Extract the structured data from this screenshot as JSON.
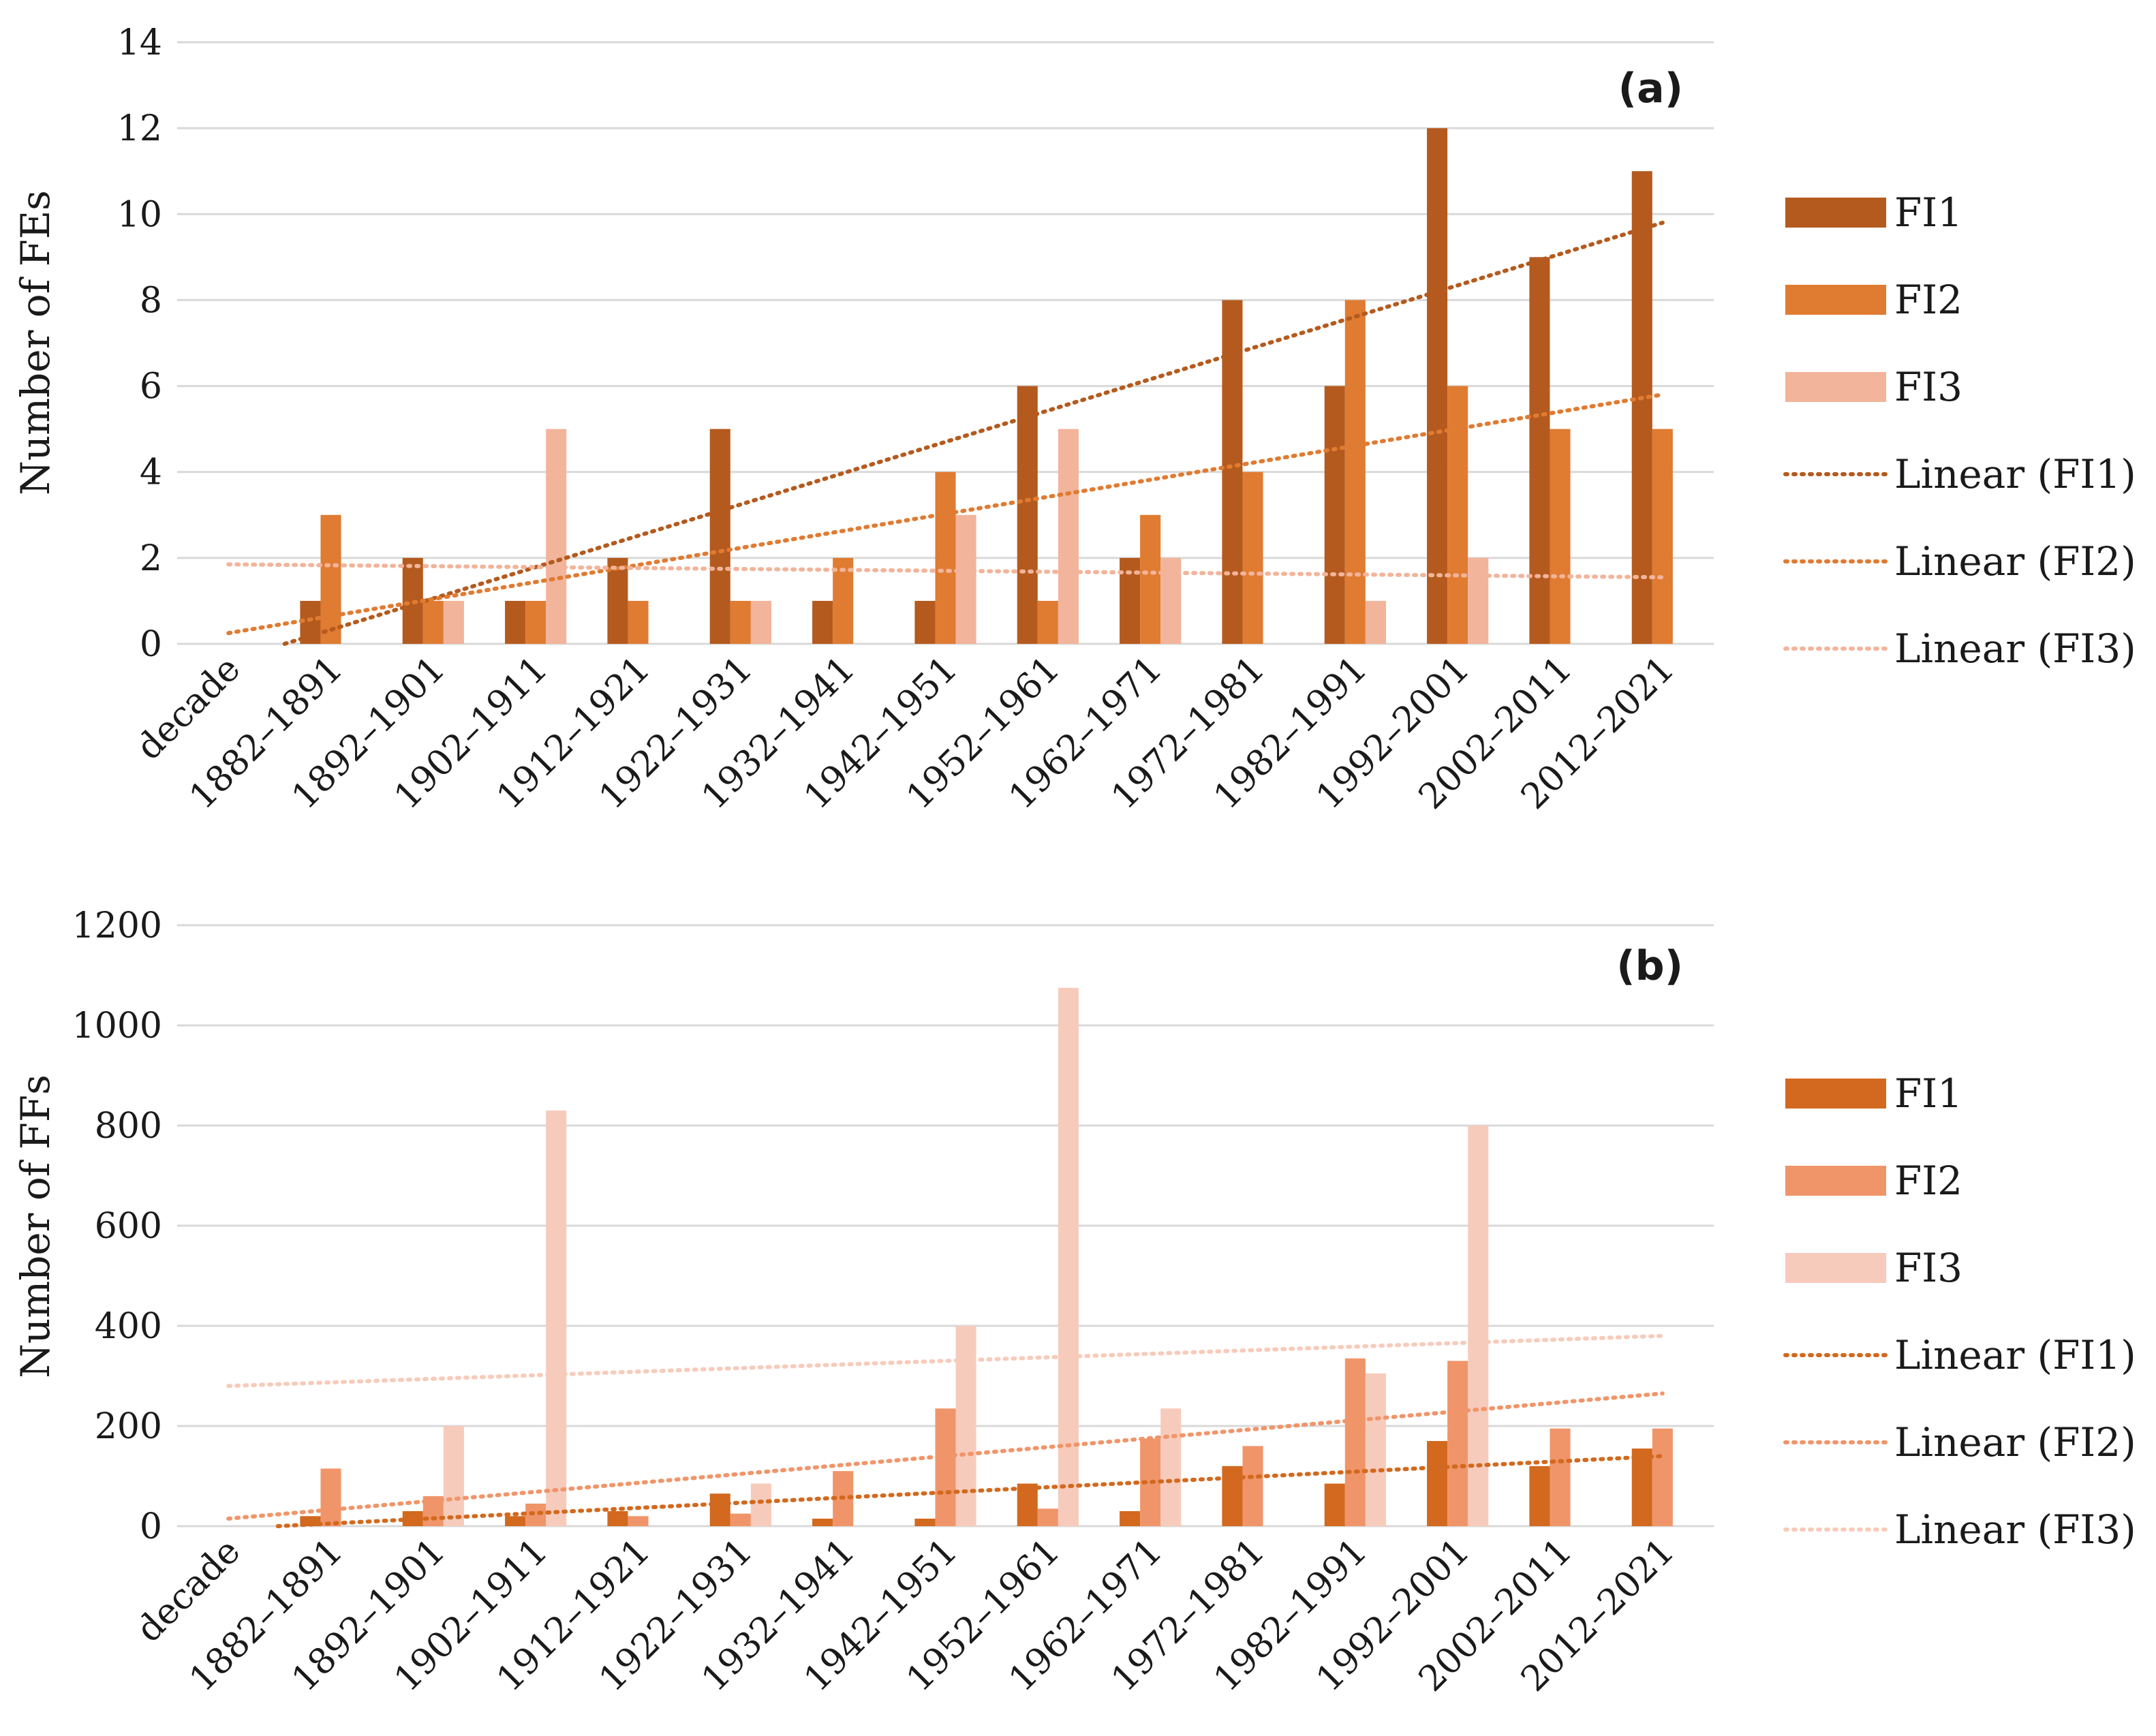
{
  "chart_data": [
    {
      "type": "bar",
      "panel_label": "(a)",
      "ylabel": "Number of FEs",
      "xlabel": "",
      "ylim": [
        0,
        14
      ],
      "yticks": [
        "0",
        "2",
        "4",
        "6",
        "8",
        "10",
        "12",
        "14"
      ],
      "grid": true,
      "categories": [
        "decade",
        "1882–1891",
        "1892–1901",
        "1902–1911",
        "1912–1921",
        "1922–1931",
        "1932–1941",
        "1942–1951",
        "1952–1961",
        "1962–1971",
        "1972–1981",
        "1982–1991",
        "1992–2001",
        "2002–2011",
        "2012–2021"
      ],
      "series": [
        {
          "name": "FI1",
          "color": "#B45A1E",
          "values": [
            null,
            1,
            2,
            1,
            2,
            5,
            1,
            1,
            6,
            2,
            8,
            6,
            12,
            9,
            11
          ]
        },
        {
          "name": "FI2",
          "color": "#E07B32",
          "values": [
            null,
            3,
            1,
            1,
            1,
            1,
            2,
            4,
            1,
            3,
            4,
            8,
            6,
            5,
            5
          ]
        },
        {
          "name": "FI3",
          "color": "#F2B49A",
          "values": [
            null,
            0,
            1,
            5,
            0,
            1,
            0,
            3,
            5,
            2,
            0,
            1,
            2,
            0,
            0
          ]
        }
      ],
      "trendlines": [
        {
          "name": "Linear (FI1)",
          "color": "#B45A1E",
          "start": -0.4,
          "end": 9.8
        },
        {
          "name": "Linear (FI2)",
          "color": "#E07B32",
          "start": 0.25,
          "end": 5.8
        },
        {
          "name": "Linear (FI3)",
          "color": "#F2B49A",
          "start": 1.85,
          "end": 1.55
        }
      ],
      "legend": [
        "FI1",
        "FI2",
        "FI3",
        "Linear (FI1)",
        "Linear (FI2)",
        "Linear (FI3)"
      ],
      "legend_position": "right"
    },
    {
      "type": "bar",
      "panel_label": "(b)",
      "ylabel": "Number of FFs",
      "xlabel": "",
      "ylim": [
        0,
        1200
      ],
      "yticks": [
        "0",
        "200",
        "400",
        "600",
        "800",
        "1000",
        "1200"
      ],
      "grid": true,
      "categories": [
        "decade",
        "1882–1891",
        "1892–1901",
        "1902–1911",
        "1912–1921",
        "1922–1931",
        "1932–1941",
        "1942–1951",
        "1952–1961",
        "1962–1971",
        "1972–1981",
        "1982–1991",
        "1992–2001",
        "2002–2011",
        "2012–2021"
      ],
      "series": [
        {
          "name": "FI1",
          "color": "#D2691E",
          "values": [
            null,
            20,
            30,
            20,
            30,
            65,
            15,
            15,
            85,
            30,
            120,
            85,
            170,
            120,
            155
          ]
        },
        {
          "name": "FI2",
          "color": "#F0956A",
          "values": [
            null,
            115,
            60,
            45,
            20,
            25,
            110,
            235,
            35,
            175,
            160,
            335,
            330,
            195,
            195
          ]
        },
        {
          "name": "FI3",
          "color": "#F7CBBB",
          "values": [
            null,
            0,
            200,
            830,
            0,
            85,
            0,
            400,
            1075,
            235,
            0,
            305,
            800,
            0,
            0
          ]
        }
      ],
      "trendlines": [
        {
          "name": "Linear (FI1)",
          "color": "#D2691E",
          "start": -5,
          "end": 140
        },
        {
          "name": "Linear (FI2)",
          "color": "#F0956A",
          "start": 15,
          "end": 265
        },
        {
          "name": "Linear (FI3)",
          "color": "#F7CBBB",
          "start": 280,
          "end": 380
        }
      ],
      "legend": [
        "FI1",
        "FI2",
        "FI3",
        "Linear (FI1)",
        "Linear (FI2)",
        "Linear (FI3)"
      ],
      "legend_position": "right"
    }
  ]
}
